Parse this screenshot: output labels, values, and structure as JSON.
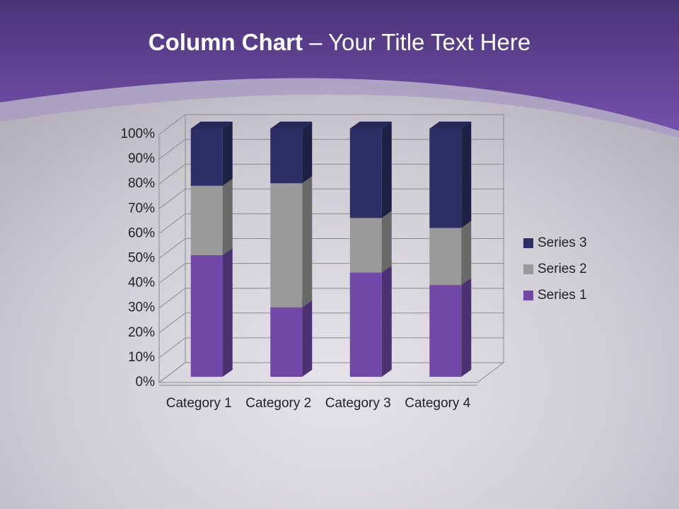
{
  "chart_data": {
    "type": "bar",
    "stacked": true,
    "title": "Column Chart",
    "subtitle": " – Your Title Text Here",
    "categories": [
      "Category 1",
      "Category 2",
      "Category 3",
      "Category 4"
    ],
    "series": [
      {
        "name": "Series 1",
        "color": "#7048a8",
        "values": [
          49,
          28,
          42,
          37
        ]
      },
      {
        "name": "Series 2",
        "color": "#9a9a9a",
        "values": [
          28,
          50,
          22,
          23
        ]
      },
      {
        "name": "Series 3",
        "color": "#2f2f68",
        "values": [
          23,
          22,
          36,
          40
        ]
      }
    ],
    "ylim": [
      0,
      100
    ],
    "yticks": [
      {
        "value": 0,
        "label": "0%"
      },
      {
        "value": 10,
        "label": "10%"
      },
      {
        "value": 20,
        "label": "20%"
      },
      {
        "value": 30,
        "label": "30%"
      },
      {
        "value": 40,
        "label": "40%"
      },
      {
        "value": 50,
        "label": "50%"
      },
      {
        "value": 60,
        "label": "60%"
      },
      {
        "value": 70,
        "label": "70%"
      },
      {
        "value": 80,
        "label": "80%"
      },
      {
        "value": 90,
        "label": "90%"
      },
      {
        "value": 100,
        "label": "100%"
      }
    ],
    "grid": true,
    "legend": "right"
  }
}
